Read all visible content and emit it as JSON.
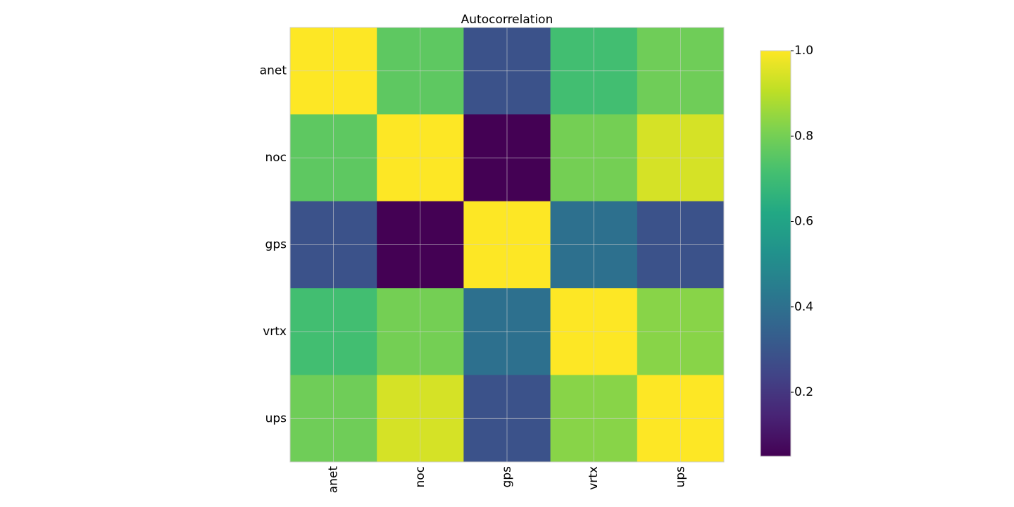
{
  "colors": {
    "grid": "#d0d0d0",
    "axes_edge": "#cccccc",
    "colormap": "viridis"
  },
  "chart_data": {
    "type": "heatmap",
    "title": "Autocorrelation",
    "x_categories": [
      "anet",
      "noc",
      "gps",
      "vrtx",
      "ups"
    ],
    "y_categories": [
      "anet",
      "noc",
      "gps",
      "vrtx",
      "ups"
    ],
    "values": [
      [
        1.0,
        0.76,
        0.29,
        0.71,
        0.79
      ],
      [
        0.76,
        1.0,
        0.05,
        0.8,
        0.94
      ],
      [
        0.29,
        0.05,
        1.0,
        0.4,
        0.29
      ],
      [
        0.71,
        0.8,
        0.4,
        1.0,
        0.83
      ],
      [
        0.79,
        0.94,
        0.29,
        0.83,
        1.0
      ]
    ],
    "colorbar": {
      "range": [
        0.05,
        1.0
      ],
      "ticks": [
        0.2,
        0.4,
        0.6,
        0.8,
        1.0
      ],
      "tick_labels": [
        "0.2",
        "0.4",
        "0.6",
        "0.8",
        "1.0"
      ]
    },
    "grid": true
  }
}
